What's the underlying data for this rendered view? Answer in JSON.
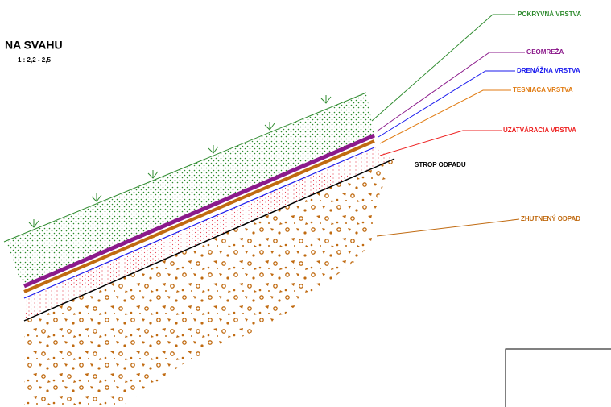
{
  "title": "NA SVAHU",
  "scale": "1 : 2,2 - 2,5",
  "labels": {
    "cover": "POKRYVNÁ VRSTVA",
    "geogrid": "GEOMREŽA",
    "drainage": "DRENÁŽNA VRSTVA",
    "sealing": "TESNIACA VRSTVA",
    "closing": "UZATVÁRACIA VRSTVA",
    "waste_top": "STROP ODPADU",
    "compacted": "ZHUTNENÝ ODPAD"
  }
}
